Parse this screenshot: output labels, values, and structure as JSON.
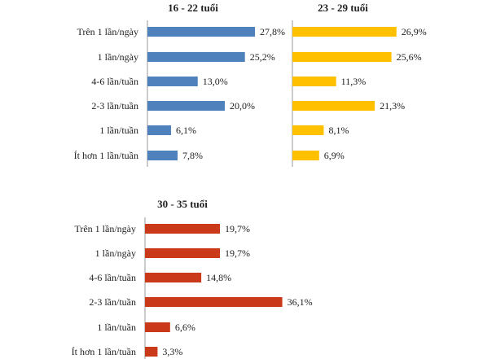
{
  "chart_data": [
    {
      "type": "bar",
      "orientation": "horizontal",
      "title": "16 - 22 tuổi",
      "categories": [
        "Trên 1 lần/ngày",
        "1 lần/ngày",
        "4-6 lần/tuần",
        "2-3 lần/tuần",
        "1 lần/tuần",
        "Ít hơn 1 lần/tuần"
      ],
      "values": [
        27.8,
        25.2,
        13.0,
        20.0,
        6.1,
        7.8
      ],
      "value_labels": [
        "27,8%",
        "25,2%",
        "13,0%",
        "20,0%",
        "6,1%",
        "7,8%"
      ],
      "color": "#4f81bd"
    },
    {
      "type": "bar",
      "orientation": "horizontal",
      "title": "23 - 29 tuổi",
      "categories": [
        "Trên 1 lần/ngày",
        "1 lần/ngày",
        "4-6 lần/tuần",
        "2-3 lần/tuần",
        "1 lần/tuần",
        "Ít hơn 1 lần/tuần"
      ],
      "values": [
        26.9,
        25.6,
        11.3,
        21.3,
        8.1,
        6.9
      ],
      "value_labels": [
        "26,9%",
        "25,6%",
        "11,3%",
        "21,3%",
        "8,1%",
        "6,9%"
      ],
      "color": "#ffc000"
    },
    {
      "type": "bar",
      "orientation": "horizontal",
      "title": "30 - 35 tuổi",
      "categories": [
        "Trên 1 lần/ngày",
        "1 lần/ngày",
        "4-6 lần/tuần",
        "2-3 lần/tuần",
        "1 lần/tuần",
        "Ít hơn 1 lần/tuần"
      ],
      "values": [
        19.7,
        19.7,
        14.8,
        36.1,
        6.6,
        3.3
      ],
      "value_labels": [
        "19,7%",
        "19,7%",
        "14,8%",
        "36,1%",
        "6,6%",
        "3,3%"
      ],
      "color": "#c9391a"
    }
  ]
}
